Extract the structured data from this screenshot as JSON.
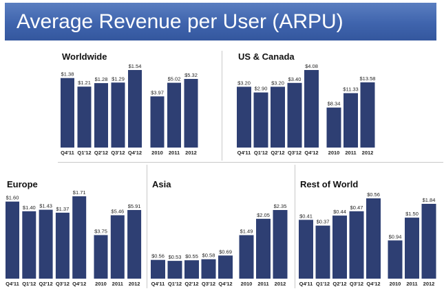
{
  "header": {
    "title": "Average Revenue per User (ARPU)"
  },
  "colors": {
    "banner": "#4a6fb5",
    "bar": "#2e3f73",
    "title_text": "#ffffff"
  },
  "chart_data": [
    {
      "type": "bar",
      "title": "Worldwide",
      "categories": [
        "Q4'11",
        "Q1'12",
        "Q2'12",
        "Q3'12",
        "Q4'12",
        "2010",
        "2011",
        "2012"
      ],
      "values": [
        1.38,
        1.21,
        1.28,
        1.29,
        1.54,
        3.97,
        5.02,
        5.32
      ],
      "labels": [
        "$1.38",
        "$1.21",
        "$1.28",
        "$1.29",
        "$1.54",
        "$3.97",
        "$5.02",
        "$5.32"
      ],
      "groups": [
        [
          0,
          4
        ],
        [
          5,
          7
        ]
      ],
      "ylim_quarterly": [
        0,
        1.54
      ],
      "ylim_annual": [
        0,
        5.32
      ],
      "xlabel": "",
      "ylabel": ""
    },
    {
      "type": "bar",
      "title": "US & Canada",
      "categories": [
        "Q4'11",
        "Q1'12",
        "Q2'12",
        "Q3'12",
        "Q4'12",
        "2010",
        "2011",
        "2012"
      ],
      "values": [
        3.2,
        2.9,
        3.2,
        3.4,
        4.08,
        8.34,
        11.33,
        13.58
      ],
      "labels": [
        "$3.20",
        "$2.90",
        "$3.20",
        "$3.40",
        "$4.08",
        "$8.34",
        "$11.33",
        "$13.58"
      ],
      "groups": [
        [
          0,
          4
        ],
        [
          5,
          7
        ]
      ],
      "ylim_quarterly": [
        0,
        4.08
      ],
      "ylim_annual": [
        0,
        13.58
      ],
      "xlabel": "",
      "ylabel": ""
    },
    {
      "type": "bar",
      "title": "Europe",
      "categories": [
        "Q4'11",
        "Q1'12",
        "Q2'12",
        "Q3'12",
        "Q4'12",
        "2010",
        "2011",
        "2012"
      ],
      "values": [
        1.6,
        1.4,
        1.43,
        1.37,
        1.71,
        3.75,
        5.46,
        5.91
      ],
      "labels": [
        "$1.60",
        "$1.40",
        "$1.43",
        "$1.37",
        "$1.71",
        "$3.75",
        "$5.46",
        "$5.91"
      ],
      "groups": [
        [
          0,
          4
        ],
        [
          5,
          7
        ]
      ],
      "ylim_quarterly": [
        0,
        1.71
      ],
      "ylim_annual": [
        0,
        5.91
      ],
      "xlabel": "",
      "ylabel": ""
    },
    {
      "type": "bar",
      "title": "Asia",
      "categories": [
        "Q4'11",
        "Q1'12",
        "Q2'12",
        "Q3'12",
        "Q4'12",
        "2010",
        "2011",
        "2012"
      ],
      "values": [
        0.56,
        0.53,
        0.55,
        0.58,
        0.69,
        1.49,
        2.05,
        2.35
      ],
      "labels": [
        "$0.56",
        "$0.53",
        "$0.55",
        "$0.58",
        "$0.69",
        "$1.49",
        "$2.05",
        "$2.35"
      ],
      "groups": [
        [
          0,
          4
        ],
        [
          5,
          7
        ]
      ],
      "ylim_quarterly": [
        0,
        2.05
      ],
      "ylim_annual": [
        0,
        2.35
      ],
      "xlabel": "",
      "ylabel": ""
    },
    {
      "type": "bar",
      "title": "Rest of World",
      "categories": [
        "Q4'11",
        "Q1'12",
        "Q2'12",
        "Q3'12",
        "Q4'12",
        "2010",
        "2011",
        "2012"
      ],
      "values": [
        0.41,
        0.37,
        0.44,
        0.47,
        0.56,
        0.94,
        1.5,
        1.84
      ],
      "labels": [
        "$0.41",
        "$0.37",
        "$0.44",
        "$0.47",
        "$0.56",
        "$0.94",
        "$1.50",
        "$1.84"
      ],
      "groups": [
        [
          0,
          4
        ],
        [
          5,
          7
        ]
      ],
      "ylim_quarterly": [
        0,
        0.56
      ],
      "ylim_annual": [
        0,
        1.84
      ],
      "xlabel": "",
      "ylabel": ""
    }
  ]
}
